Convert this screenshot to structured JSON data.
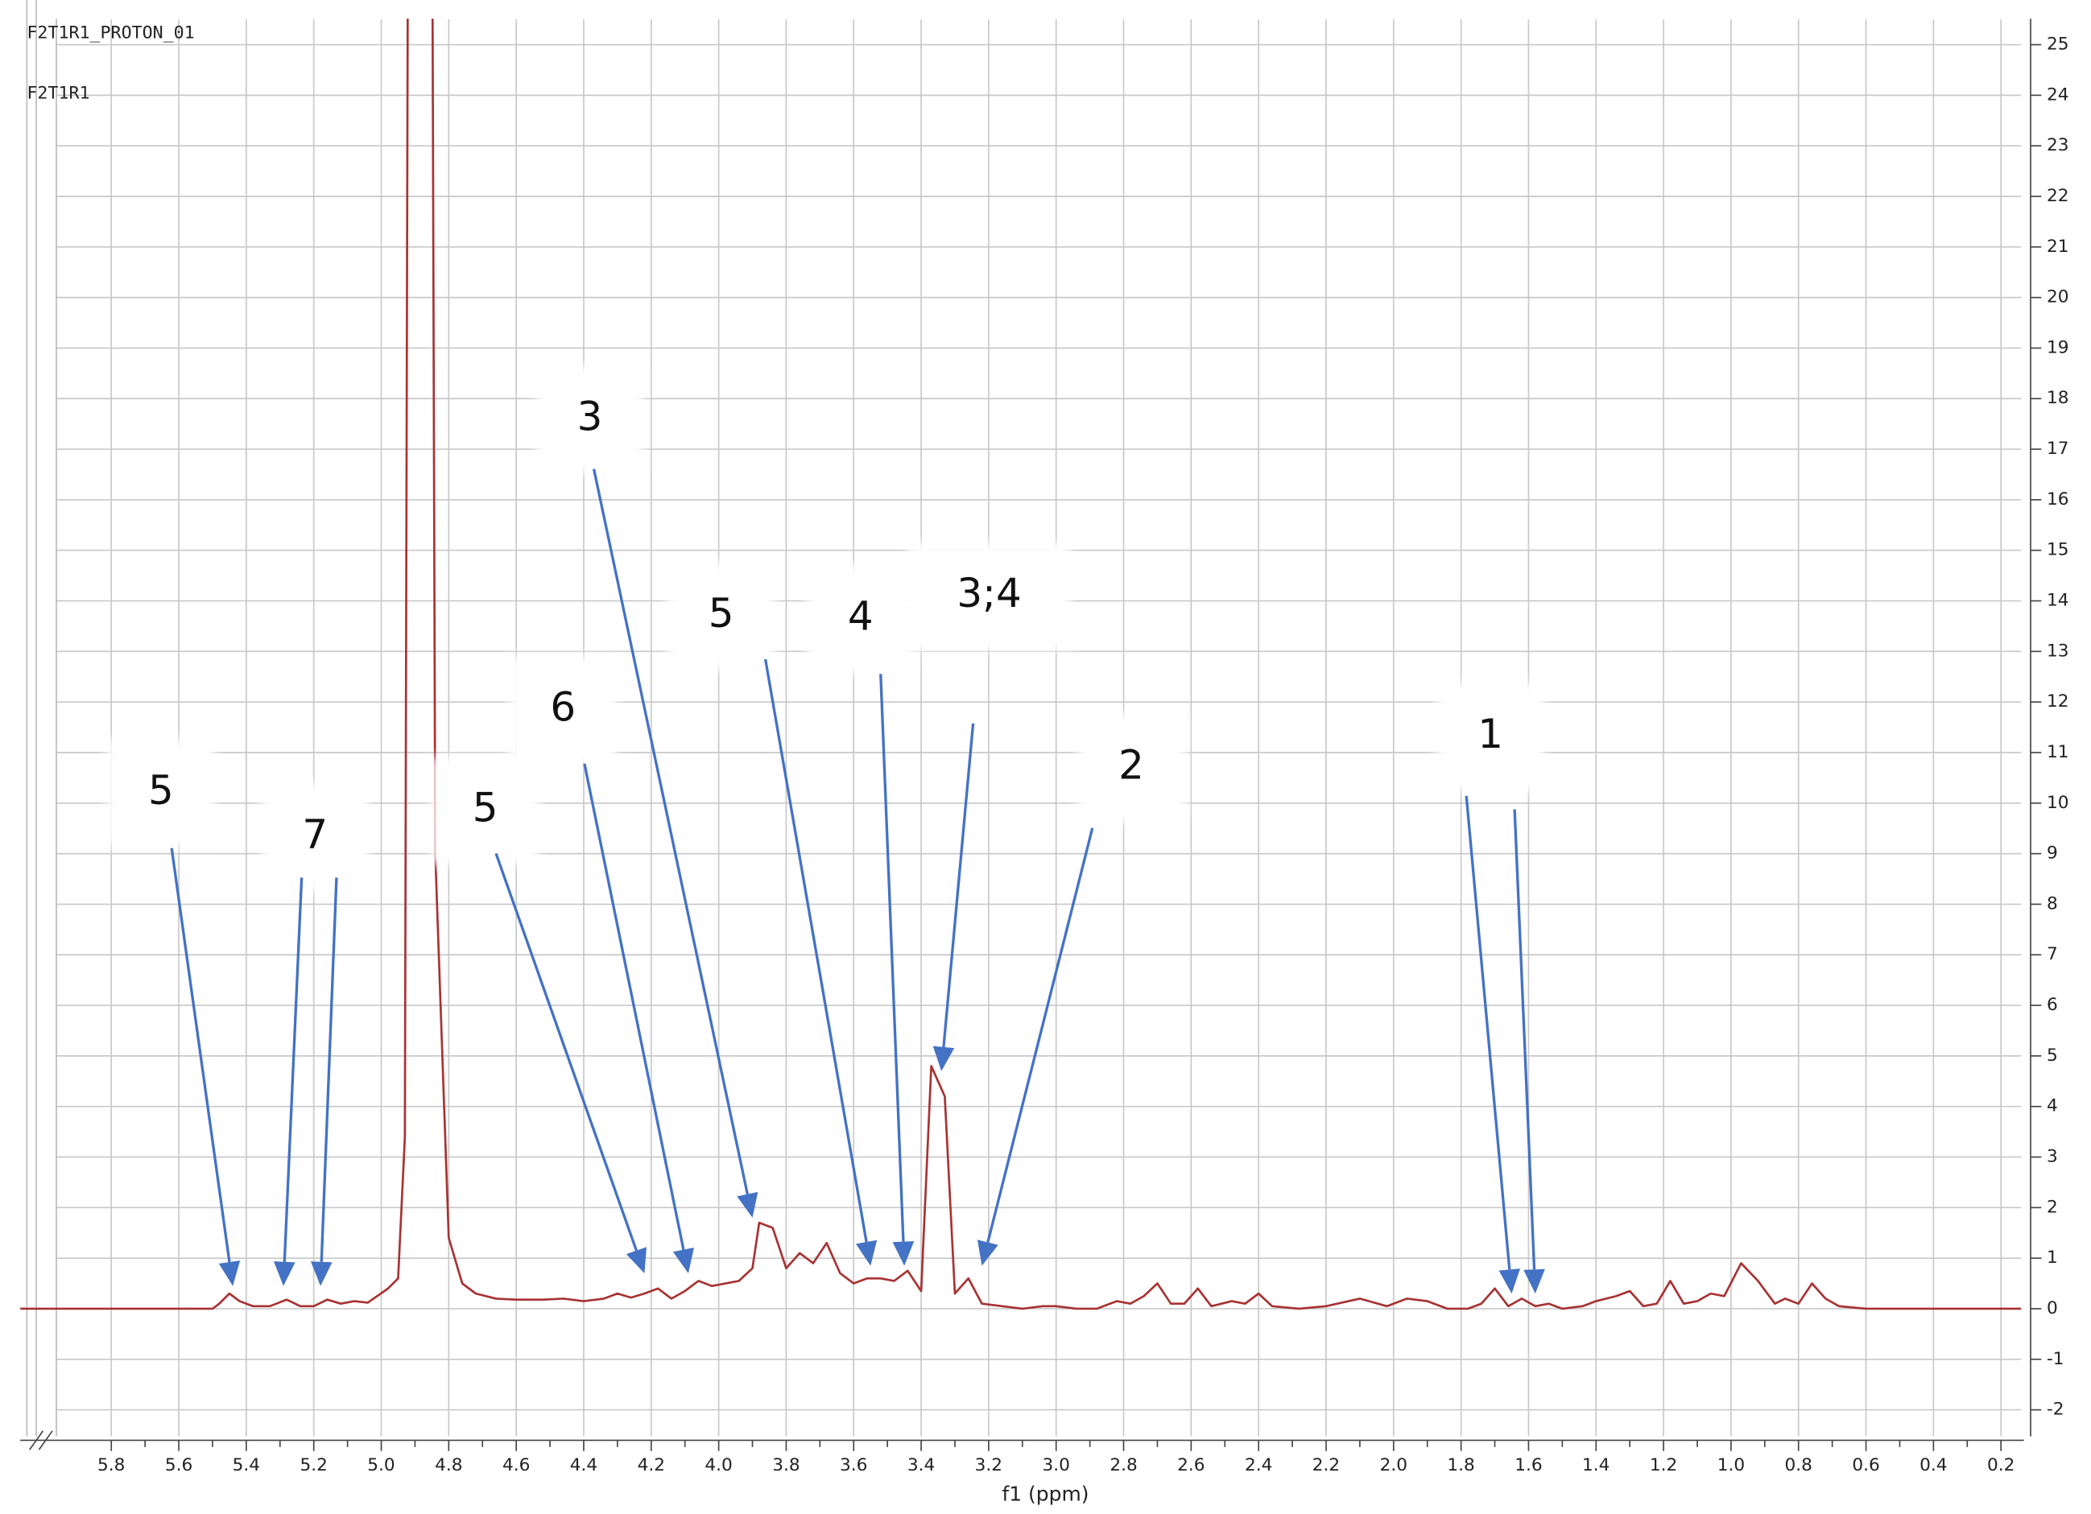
{
  "chart_data": {
    "type": "line",
    "header": [
      "F2T1R1_PROTON_01",
      "F2T1R1"
    ],
    "xlabel": "f1 (ppm)",
    "color": "#a83232",
    "grid": true,
    "xlim": [
      6.07,
      0.14
    ],
    "ylim": [
      -2.47,
      25.5
    ],
    "xticks": [
      5.8,
      5.6,
      5.4,
      5.2,
      {
        "value": 5,
        "label": "5.0"
      },
      4.8,
      4.6,
      4.4,
      4.2,
      {
        "value": 4,
        "label": "4.0"
      },
      3.8,
      3.6,
      3.4,
      3.2,
      {
        "value": 3,
        "label": "3.0"
      },
      2.8,
      2.6,
      2.4,
      2.2,
      {
        "value": 2,
        "label": "2.0"
      },
      1.8,
      1.6,
      1.4,
      1.2,
      {
        "value": 1,
        "label": "1.0"
      },
      0.8,
      0.6,
      0.4,
      0.2
    ],
    "yticks": [
      -2,
      -1,
      0,
      1,
      2,
      3,
      4,
      5,
      6,
      7,
      8,
      9,
      10,
      11,
      12,
      13,
      14,
      15,
      16,
      17,
      18,
      19,
      20,
      21,
      22,
      23,
      24,
      25
    ],
    "x": [
      6.07,
      5.5,
      5.48,
      5.45,
      5.42,
      5.38,
      5.33,
      5.28,
      5.24,
      5.2,
      5.16,
      5.12,
      5.08,
      5.04,
      4.98,
      4.95,
      4.93,
      4.92,
      4.85,
      4.84,
      4.8,
      4.76,
      4.72,
      4.66,
      4.6,
      4.52,
      4.46,
      4.4,
      4.34,
      4.3,
      4.26,
      4.22,
      4.18,
      4.14,
      4.1,
      4.06,
      4.02,
      3.98,
      3.94,
      3.9,
      3.88,
      3.84,
      3.8,
      3.76,
      3.72,
      3.68,
      3.64,
      3.6,
      3.56,
      3.52,
      3.48,
      3.44,
      3.4,
      3.37,
      3.33,
      3.3,
      3.26,
      3.22,
      3.16,
      3.1,
      3.04,
      3.0,
      2.94,
      2.88,
      2.82,
      2.78,
      2.74,
      2.7,
      2.66,
      2.62,
      2.58,
      2.54,
      2.48,
      2.44,
      2.4,
      2.36,
      2.28,
      2.2,
      2.1,
      2.02,
      1.96,
      1.9,
      1.84,
      1.78,
      1.74,
      1.7,
      1.66,
      1.62,
      1.58,
      1.54,
      1.5,
      1.44,
      1.4,
      1.34,
      1.3,
      1.26,
      1.22,
      1.18,
      1.14,
      1.1,
      1.06,
      1.02,
      0.97,
      0.92,
      0.87,
      0.84,
      0.8,
      0.76,
      0.72,
      0.68,
      0.6,
      0.14
    ],
    "values": [
      0,
      0,
      0.1,
      0.3,
      0.15,
      0.05,
      0.05,
      0.18,
      0.05,
      0.05,
      0.18,
      0.1,
      0.15,
      0.12,
      0.4,
      0.6,
      3.4,
      30,
      30,
      9,
      1.4,
      0.5,
      0.3,
      0.2,
      0.18,
      0.18,
      0.2,
      0.15,
      0.2,
      0.3,
      0.22,
      0.3,
      0.4,
      0.2,
      0.35,
      0.55,
      0.45,
      0.5,
      0.55,
      0.8,
      1.7,
      1.6,
      0.8,
      1.1,
      0.9,
      1.3,
      0.7,
      0.5,
      0.6,
      0.6,
      0.55,
      0.75,
      0.35,
      4.8,
      4.2,
      0.3,
      0.6,
      0.1,
      0.05,
      0,
      0.05,
      0.05,
      0,
      0,
      0.15,
      0.1,
      0.25,
      0.5,
      0.1,
      0.1,
      0.4,
      0.05,
      0.15,
      0.1,
      0.3,
      0.05,
      0,
      0.05,
      0.2,
      0.05,
      0.2,
      0.15,
      0,
      0,
      0.1,
      0.4,
      0.05,
      0.2,
      0.05,
      0.1,
      0,
      0.05,
      0.15,
      0.25,
      0.35,
      0.05,
      0.1,
      0.55,
      0.1,
      0.15,
      0.3,
      0.25,
      0.9,
      0.55,
      0.1,
      0.2,
      0.1,
      0.5,
      0.2,
      0.05,
      0,
      0
    ],
    "annotations": [
      {
        "text": "5",
        "arrows": [
          {
            "x": 5.44,
            "y": 0.45
          }
        ]
      },
      {
        "text": "7",
        "arrows": [
          {
            "x": 5.29,
            "y": 0.45
          },
          {
            "x": 5.18,
            "y": 0.45
          }
        ]
      },
      {
        "text": "5",
        "arrows": [
          {
            "x": 4.22,
            "y": 0.7
          }
        ]
      },
      {
        "text": "6",
        "arrows": [
          {
            "x": 4.09,
            "y": 0.7
          }
        ]
      },
      {
        "text": "3",
        "arrows": [
          {
            "x": 3.9,
            "y": 1.8
          }
        ]
      },
      {
        "text": "5",
        "arrows": [
          {
            "x": 3.55,
            "y": 0.85
          }
        ]
      },
      {
        "text": "4",
        "arrows": [
          {
            "x": 3.45,
            "y": 0.85
          }
        ]
      },
      {
        "text": "3;4",
        "arrows": [
          {
            "x": 3.34,
            "y": 4.7
          }
        ]
      },
      {
        "text": "2",
        "arrows": [
          {
            "x": 3.22,
            "y": 0.85
          }
        ]
      },
      {
        "text": "1",
        "arrows": [
          {
            "x": 1.65,
            "y": 0.3
          },
          {
            "x": 1.58,
            "y": 0.3
          }
        ]
      }
    ]
  }
}
